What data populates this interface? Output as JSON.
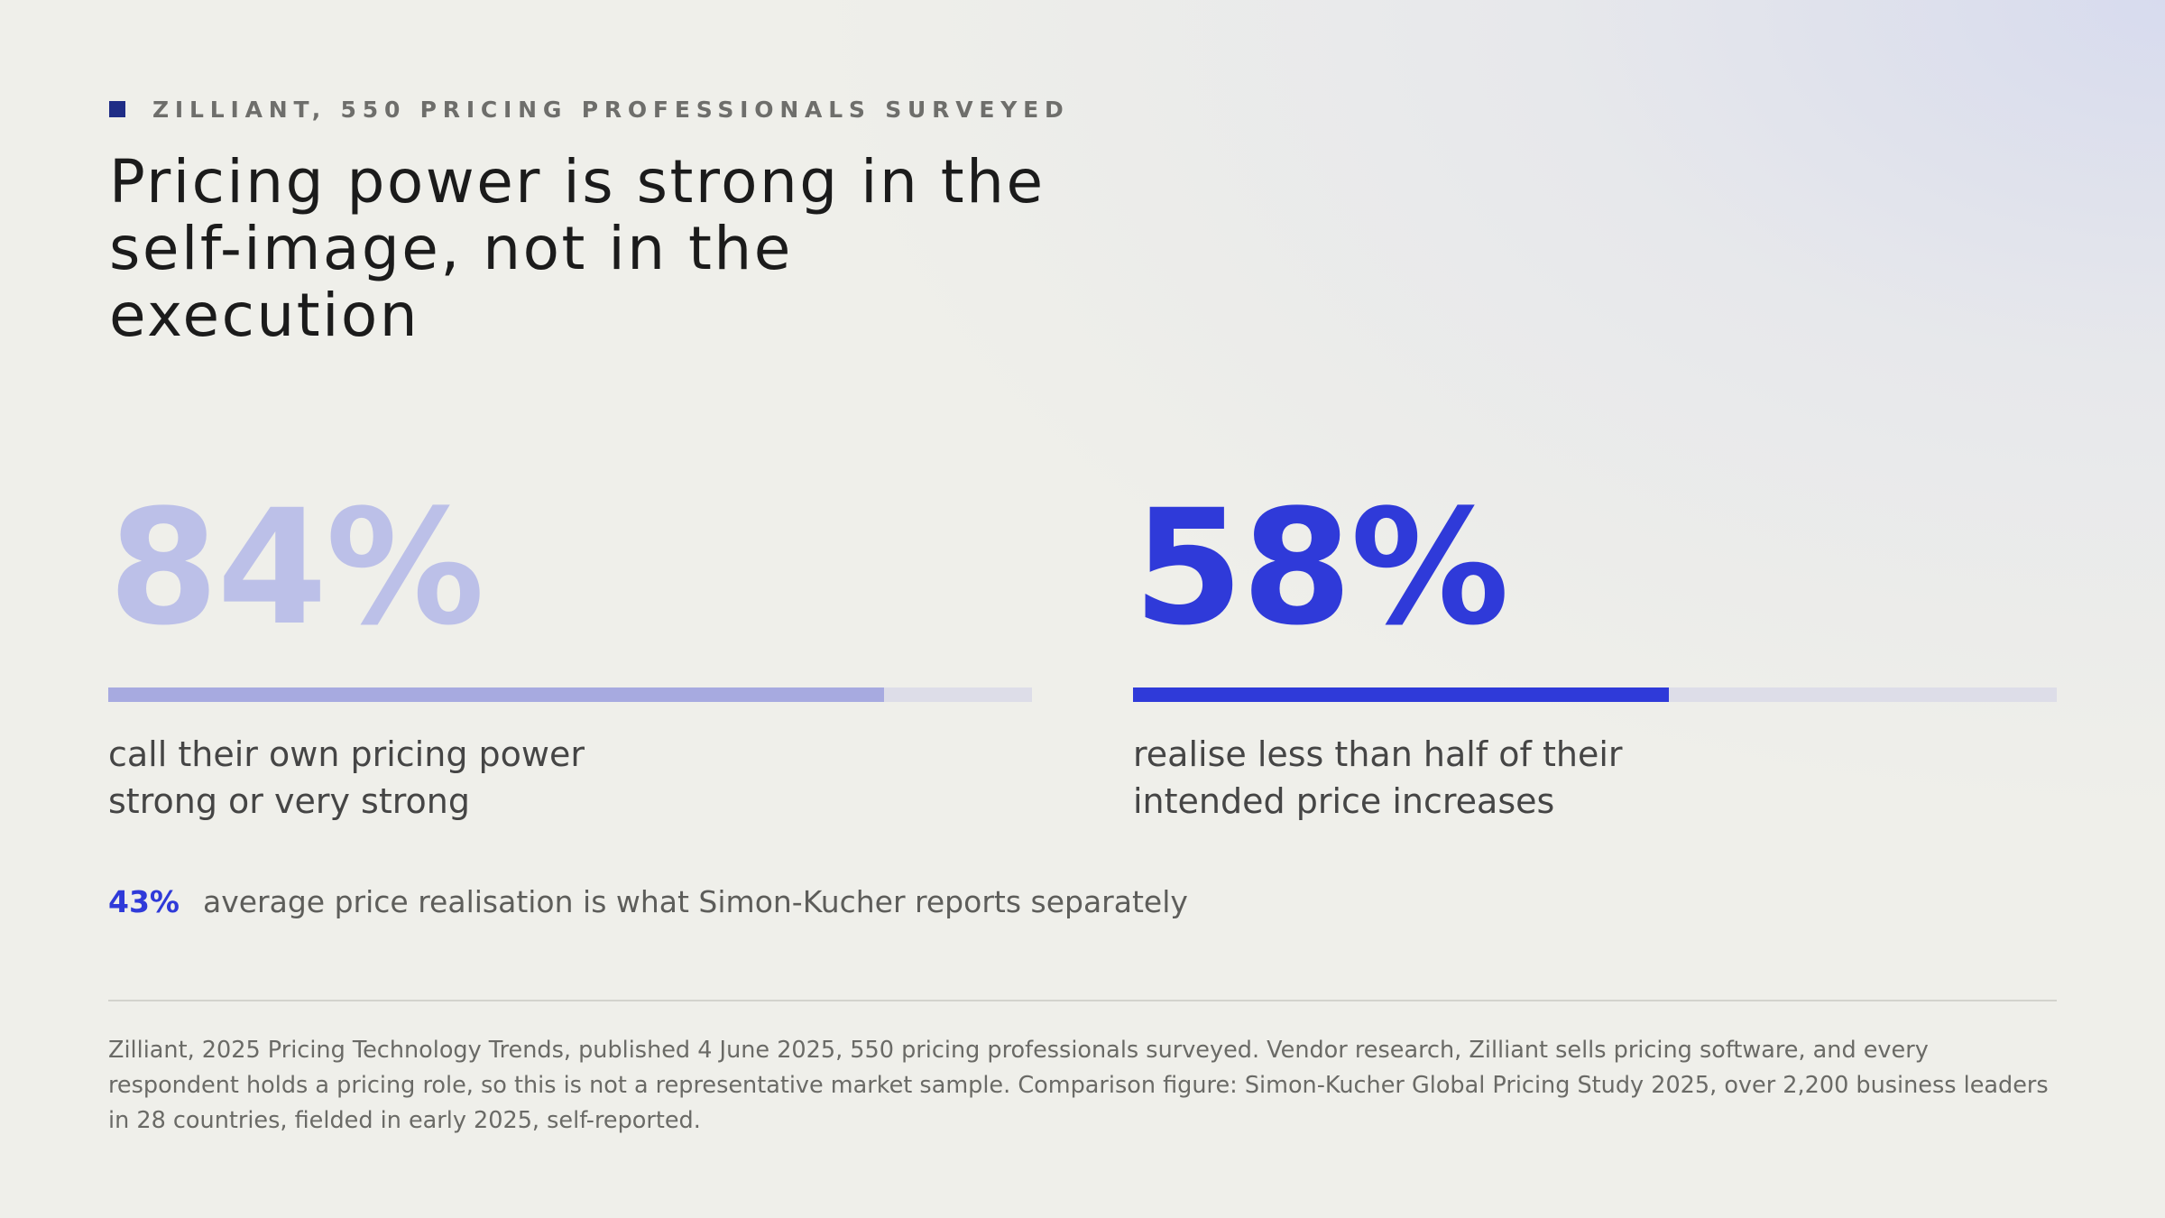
{
  "eyebrow": {
    "text": "ZILLIANT, 550 PRICING PROFESSIONALS SURVEYED",
    "marker_color": "#1f2d86"
  },
  "headline": "Pricing power is strong in the self-image, not in the execution",
  "stats": [
    {
      "value_label": "84%",
      "bar_fraction": 0.84,
      "caption_lines": [
        "call their own pricing power",
        "strong or very strong"
      ],
      "number_color": "#bcc0e8",
      "bar_color": "#a7aae0"
    },
    {
      "value_label": "58%",
      "bar_fraction": 0.58,
      "caption_lines": [
        "realise less than half of their",
        "intended price increases"
      ],
      "number_color": "#2f3ad9",
      "bar_color": "#2f3ad9"
    }
  ],
  "comparison": {
    "value": "43%",
    "text": "average price realisation is what Simon-Kucher reports separately"
  },
  "footnote": "Zilliant, 2025 Pricing Technology Trends, published 4 June 2025, 550 pricing professionals surveyed. Vendor research, Zilliant sells pricing software, and every respondent holds a pricing role, so this is not a representative market sample. Comparison figure: Simon-Kucher Global Pricing Study 2025, over 2,200 business leaders in 28 countries, fielded in early 2025, self-reported.",
  "colors": {
    "accent": "#2f3ad9",
    "accent_muted": "#bcc0e8",
    "track": "#dddde8",
    "background": "#efefea"
  }
}
